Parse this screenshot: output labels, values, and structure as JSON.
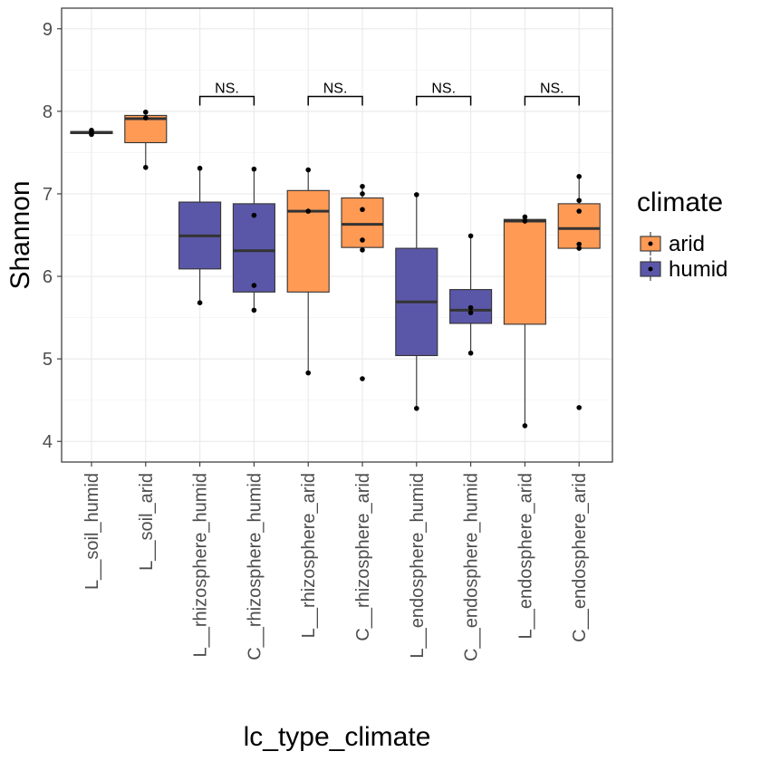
{
  "chart_data": {
    "type": "box",
    "xlabel": "lc_type_climate",
    "ylabel": "Shannon",
    "ylim": [
      3.75,
      9.25
    ],
    "yticks": [
      4,
      5,
      6,
      7,
      8,
      9
    ],
    "grid": true,
    "legend": {
      "title": "climate",
      "position": "right",
      "entries": [
        {
          "name": "arid",
          "color": "#FF9A55"
        },
        {
          "name": "humid",
          "color": "#5B57A8"
        }
      ]
    },
    "categories": [
      "L__soil_humid",
      "L__soil_arid",
      "L__rhizosphere_humid",
      "C__rhizosphere_humid",
      "L__rhizosphere_arid",
      "C__rhizosphere_arid",
      "L__endosphere_humid",
      "C__endosphere_humid",
      "L__endosphere_arid",
      "C__endosphere_arid"
    ],
    "boxes": [
      {
        "climate": "humid",
        "min": 7.72,
        "q1": 7.73,
        "median": 7.745,
        "q3": 7.755,
        "max": 7.77,
        "points": [
          7.72,
          7.74,
          7.77
        ]
      },
      {
        "climate": "arid",
        "min": 7.32,
        "q1": 7.62,
        "median": 7.91,
        "q3": 7.95,
        "max": 7.99,
        "points": [
          7.32,
          7.92,
          7.99
        ]
      },
      {
        "climate": "humid",
        "min": 5.68,
        "q1": 6.09,
        "median": 6.49,
        "q3": 6.9,
        "max": 7.31,
        "points": [
          5.68,
          7.31
        ]
      },
      {
        "climate": "humid",
        "min": 5.59,
        "q1": 5.81,
        "median": 6.31,
        "q3": 6.88,
        "max": 7.3,
        "points": [
          5.59,
          5.89,
          6.74,
          7.3
        ]
      },
      {
        "climate": "arid",
        "min": 4.83,
        "q1": 5.81,
        "median": 6.79,
        "q3": 7.04,
        "max": 7.29,
        "points": [
          4.83,
          6.79,
          7.29
        ]
      },
      {
        "climate": "arid",
        "min": 6.32,
        "q1": 6.35,
        "median": 6.63,
        "q3": 6.95,
        "max": 7.09,
        "points": [
          4.76,
          6.32,
          6.44,
          6.81,
          7.0,
          7.09
        ]
      },
      {
        "climate": "humid",
        "min": 4.4,
        "q1": 5.04,
        "median": 5.69,
        "q3": 6.34,
        "max": 6.99,
        "points": [
          4.4,
          6.99
        ]
      },
      {
        "climate": "humid",
        "min": 5.07,
        "q1": 5.43,
        "median": 5.59,
        "q3": 5.84,
        "max": 6.49,
        "points": [
          5.07,
          5.56,
          5.62,
          6.49
        ]
      },
      {
        "climate": "arid",
        "min": 4.19,
        "q1": 5.42,
        "median": 6.67,
        "q3": 6.69,
        "max": 6.72,
        "points": [
          4.19,
          6.67,
          6.72
        ]
      },
      {
        "climate": "arid",
        "min": 6.34,
        "q1": 6.34,
        "median": 6.58,
        "q3": 6.88,
        "max": 7.21,
        "points": [
          4.41,
          6.34,
          6.39,
          6.79,
          6.92,
          7.21
        ]
      }
    ],
    "significance": [
      {
        "from": 2,
        "to": 3,
        "y": 8.18,
        "label": "NS."
      },
      {
        "from": 4,
        "to": 5,
        "y": 8.18,
        "label": "NS."
      },
      {
        "from": 6,
        "to": 7,
        "y": 8.18,
        "label": "NS."
      },
      {
        "from": 8,
        "to": 9,
        "y": 8.18,
        "label": "NS."
      }
    ]
  }
}
